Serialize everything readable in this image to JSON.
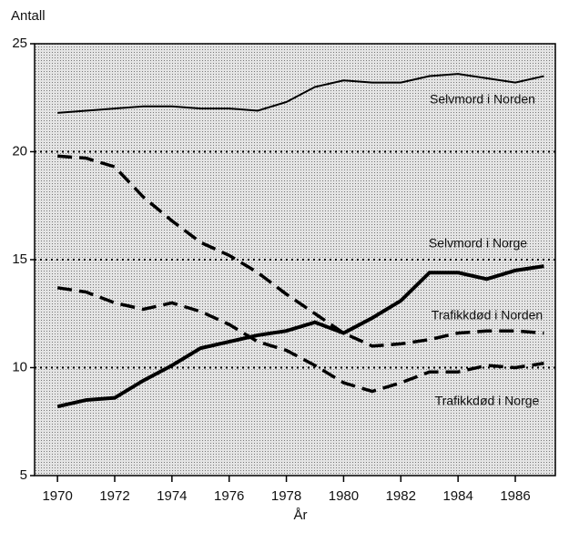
{
  "chart_data": {
    "type": "line",
    "y_label": "Antall",
    "x_label": "År",
    "x": [
      1970,
      1971,
      1972,
      1973,
      1974,
      1975,
      1976,
      1977,
      1978,
      1979,
      1980,
      1981,
      1982,
      1983,
      1984,
      1985,
      1986,
      1987
    ],
    "series": [
      {
        "name": "Selvmord i Norden",
        "color": "#000000",
        "style": "solid",
        "width": 2,
        "values": [
          21.8,
          21.9,
          22.0,
          22.1,
          22.1,
          22.0,
          22.0,
          21.9,
          22.3,
          23.0,
          23.3,
          23.2,
          23.2,
          23.5,
          23.6,
          23.4,
          23.2,
          23.5
        ]
      },
      {
        "name": "Selvmord i Norge",
        "color": "#000000",
        "style": "solid",
        "width": 4,
        "values": [
          8.2,
          8.5,
          8.6,
          9.4,
          10.1,
          10.9,
          11.2,
          11.5,
          11.7,
          12.1,
          11.6,
          12.3,
          13.1,
          14.4,
          14.4,
          14.1,
          14.5,
          14.7
        ]
      },
      {
        "name": "Trafikkdød i Norden",
        "color": "#000000",
        "style": "dashed",
        "width": 3.5,
        "values": [
          19.8,
          19.7,
          19.3,
          17.9,
          16.8,
          15.8,
          15.2,
          14.4,
          13.4,
          12.5,
          11.6,
          11.0,
          11.1,
          11.3,
          11.6,
          11.7,
          11.7,
          11.6
        ]
      },
      {
        "name": "Trafikkdød i Norge",
        "color": "#000000",
        "style": "dashed",
        "width": 3.5,
        "values": [
          13.7,
          13.5,
          13.0,
          12.7,
          13.0,
          12.6,
          12.0,
          11.2,
          10.8,
          10.1,
          9.3,
          8.9,
          9.3,
          9.8,
          9.8,
          10.1,
          10.0,
          10.2
        ]
      }
    ],
    "xlim": [
      1969.2,
      1987.4
    ],
    "xticks": [
      1970,
      1972,
      1974,
      1976,
      1978,
      1980,
      1982,
      1984,
      1986
    ],
    "ylim": [
      5,
      25
    ],
    "yticks": [
      5,
      10,
      15,
      20,
      25
    ],
    "grid_lines": [
      10,
      15,
      20
    ]
  }
}
